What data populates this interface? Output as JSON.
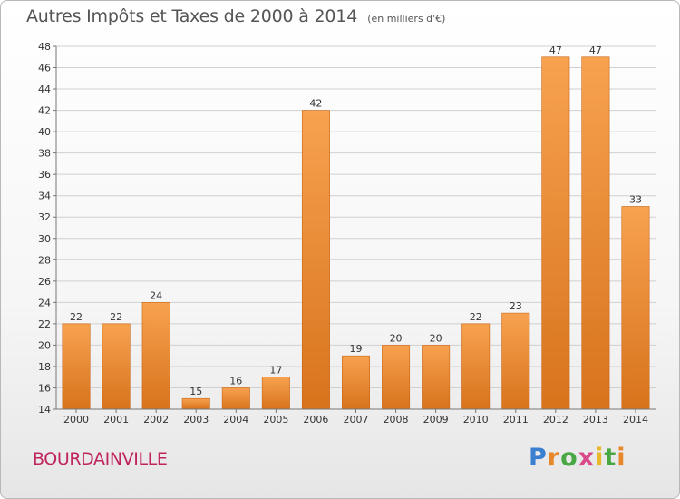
{
  "header": {
    "title": "Autres Impôts et Taxes de 2000 à 2014",
    "subtitle": "(en milliers d'€)"
  },
  "footer": {
    "commune": "BOURDAINVILLE",
    "logo": "Proxiti",
    "logo_colors": [
      "#3a7fd0",
      "#e8872a",
      "#4aa844",
      "#d84a8a",
      "#e8b82a"
    ]
  },
  "colors": {
    "bar_light": "#f7a24f",
    "bar_dark": "#d8731c",
    "grid": "#d0d0d0",
    "axis_text": "#333333"
  },
  "chart_data": {
    "type": "bar",
    "title": "Autres Impôts et Taxes de 2000 à 2014",
    "subtitle": "(en milliers d'€)",
    "xlabel": "",
    "ylabel": "",
    "categories": [
      "2000",
      "2001",
      "2002",
      "2003",
      "2004",
      "2005",
      "2006",
      "2007",
      "2008",
      "2009",
      "2010",
      "2011",
      "2012",
      "2013",
      "2014"
    ],
    "values": [
      22,
      22,
      24,
      15,
      16,
      17,
      42,
      19,
      20,
      20,
      22,
      23,
      47,
      47,
      33
    ],
    "ylim": [
      14,
      48
    ],
    "yticks": [
      14,
      16,
      18,
      20,
      22,
      24,
      26,
      28,
      30,
      32,
      34,
      36,
      38,
      40,
      42,
      44,
      46,
      48
    ],
    "grid": true,
    "legend": "none",
    "data_labels": true
  }
}
